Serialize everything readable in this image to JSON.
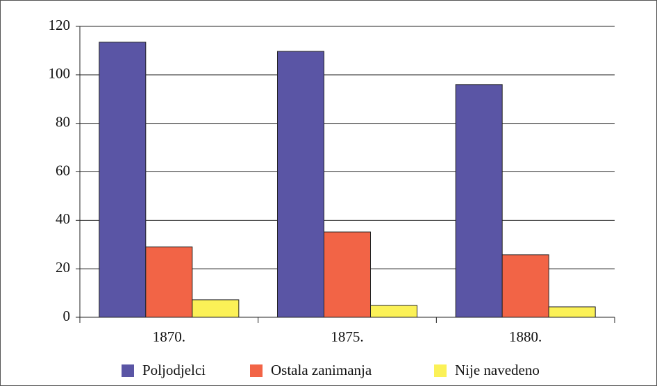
{
  "chart_data": {
    "type": "bar",
    "categories": [
      "1870.",
      "1875.",
      "1880."
    ],
    "series": [
      {
        "name": "Poljodjelci",
        "color": "#5a55a5",
        "values": [
          113.5,
          109.7,
          96
        ]
      },
      {
        "name": "Ostala zanimanja",
        "color": "#f26446",
        "values": [
          29,
          35.2,
          25.8
        ]
      },
      {
        "name": "Nije navedeno",
        "color": "#fbf157",
        "values": [
          7.2,
          4.9,
          4.3
        ]
      }
    ],
    "ylim": [
      0,
      120
    ],
    "yticks": [
      0,
      20,
      40,
      60,
      80,
      100,
      120
    ],
    "grid": true,
    "legend": "bottom"
  }
}
